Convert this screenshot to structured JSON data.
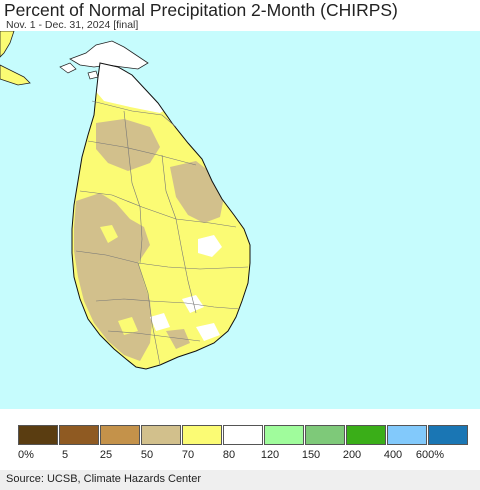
{
  "header": {
    "title": "Percent of Normal Precipitation 2-Month (CHIRPS)",
    "subtitle": "Nov. 1 - Dec. 31, 2024 [final]"
  },
  "map": {
    "region": "Sri Lanka",
    "ocean_color": "#c6fcfd"
  },
  "legend": {
    "bins": [
      {
        "color": "#5a3d11"
      },
      {
        "color": "#8f5a22"
      },
      {
        "color": "#c4924a"
      },
      {
        "color": "#d2c08c"
      },
      {
        "color": "#fbfb74"
      },
      {
        "color": "#ffffff"
      },
      {
        "color": "#a0fc9c"
      },
      {
        "color": "#7ec979"
      },
      {
        "color": "#3aae18"
      },
      {
        "color": "#82c9fb"
      },
      {
        "color": "#1a76b4"
      }
    ],
    "ticks": [
      "0%",
      "5",
      "25",
      "50",
      "70",
      "80",
      "120",
      "150",
      "200",
      "400",
      "600%"
    ]
  },
  "footer": {
    "source": "Source: UCSB, Climate Hazards Center"
  }
}
